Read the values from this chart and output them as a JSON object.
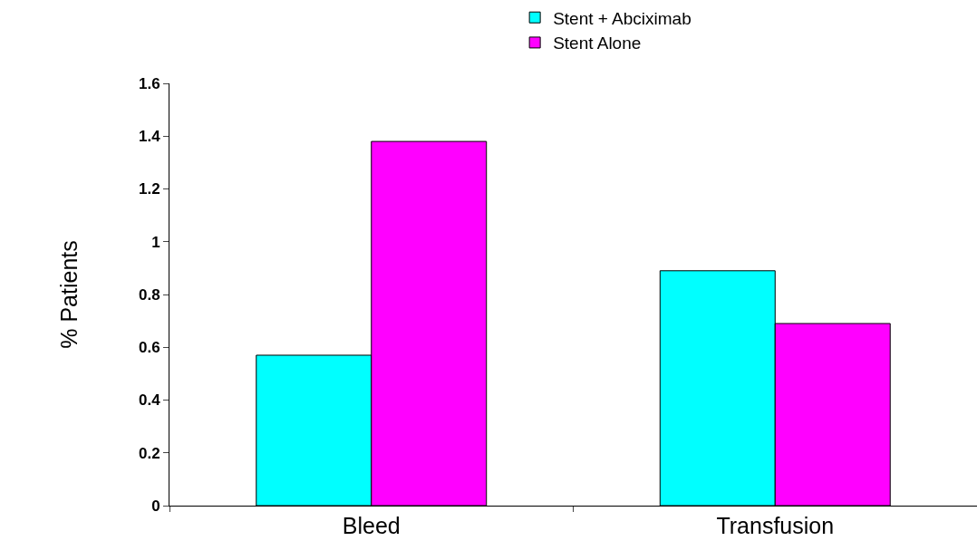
{
  "chart_data": {
    "type": "bar",
    "ylabel": "% Patients",
    "categories": [
      "Bleed",
      "Transfusion"
    ],
    "series": [
      {
        "name": "Stent + Abciximab",
        "color": "#00ffff",
        "values": [
          0.57,
          0.89
        ]
      },
      {
        "name": "Stent Alone",
        "color": "#ff00ff",
        "values": [
          1.38,
          0.69
        ]
      }
    ],
    "ylim": [
      0,
      1.6
    ],
    "yticks": [
      0,
      0.2,
      0.4,
      0.6,
      0.8,
      1,
      1.2,
      1.4,
      1.6
    ],
    "grid": false,
    "legend": "top"
  }
}
